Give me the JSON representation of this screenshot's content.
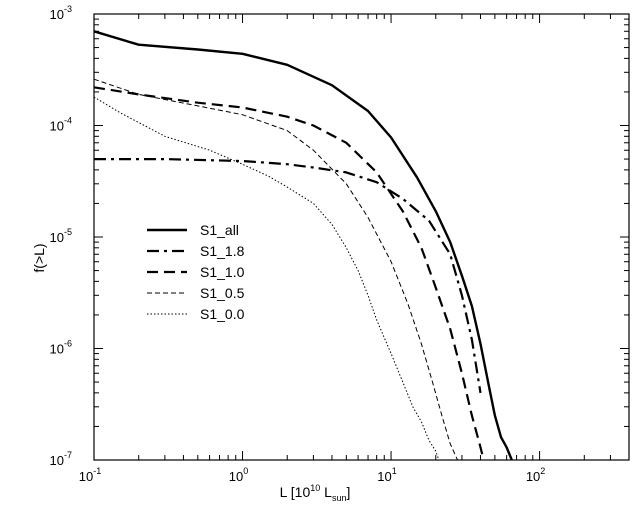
{
  "chart_data": {
    "type": "line",
    "xlabel_main": "L [10",
    "xlabel_exp": "10",
    "xlabel_unit": " L",
    "xlabel_sub": "sun",
    "xlabel_close": "]",
    "ylabel": "f(>L)",
    "x_scale": "log",
    "y_scale": "log",
    "xlim": [
      0.1,
      400
    ],
    "ylim": [
      1e-07,
      0.001
    ],
    "x_ticks": [
      {
        "value": 0.1,
        "base": "10",
        "exp": "-1"
      },
      {
        "value": 1,
        "base": "10",
        "exp": "0"
      },
      {
        "value": 10,
        "base": "10",
        "exp": "1"
      },
      {
        "value": 100,
        "base": "10",
        "exp": "2"
      }
    ],
    "y_ticks": [
      {
        "value": 1e-07,
        "base": "10",
        "exp": "-7"
      },
      {
        "value": 1e-06,
        "base": "10",
        "exp": "-6"
      },
      {
        "value": 1e-05,
        "base": "10",
        "exp": "-5"
      },
      {
        "value": 0.0001,
        "base": "10",
        "exp": "-4"
      },
      {
        "value": 0.001,
        "base": "10",
        "exp": "-3"
      }
    ],
    "grid": false,
    "legend_position": "center-left",
    "series": [
      {
        "name": "S1_all",
        "style": "solid-thick",
        "x": [
          0.1,
          0.2,
          0.5,
          1,
          2,
          4,
          7,
          10,
          15,
          20,
          25,
          30,
          35,
          40,
          45,
          50,
          55,
          60,
          65
        ],
        "y": [
          0.0007,
          0.00053,
          0.00048,
          0.00044,
          0.00035,
          0.00023,
          0.000135,
          7.8e-05,
          3.4e-05,
          1.7e-05,
          9e-06,
          4.5e-06,
          2.4e-06,
          1.1e-06,
          5e-07,
          2.5e-07,
          1.6e-07,
          1.3e-07,
          1e-07
        ]
      },
      {
        "name": "S1_1.8",
        "style": "dash-dot-thick",
        "x": [
          0.1,
          0.3,
          1,
          2,
          3,
          5,
          8,
          12,
          18,
          25,
          30,
          35,
          40
        ],
        "y": [
          5e-05,
          5e-05,
          4.8e-05,
          4.5e-05,
          4.2e-05,
          3.8e-05,
          3.1e-05,
          2.2e-05,
          1.4e-05,
          7e-06,
          3e-06,
          1.2e-06,
          4e-07
        ]
      },
      {
        "name": "S1_1.0",
        "style": "dashed-thick",
        "x": [
          0.1,
          0.2,
          0.5,
          1,
          2,
          3,
          5,
          8,
          12,
          16,
          20,
          25,
          30,
          35,
          40,
          42
        ],
        "y": [
          0.00022,
          0.00019,
          0.00016,
          0.000145,
          0.00012,
          0.0001,
          7e-05,
          3.8e-05,
          1.7e-05,
          8e-06,
          3.5e-06,
          1.5e-06,
          6e-07,
          2.5e-07,
          1.3e-07,
          1e-07
        ]
      },
      {
        "name": "S1_0.5",
        "style": "dashed-thin",
        "x": [
          0.1,
          0.2,
          0.5,
          1,
          2,
          3,
          5,
          7,
          10,
          13,
          16,
          19,
          22,
          25,
          28
        ],
        "y": [
          0.00026,
          0.00019,
          0.00015,
          0.000125,
          9e-05,
          6e-05,
          3e-05,
          1.5e-05,
          6e-06,
          2.5e-06,
          1.1e-06,
          5e-07,
          2.5e-07,
          1.4e-07,
          1e-07
        ]
      },
      {
        "name": "S1_0.0",
        "style": "dotted",
        "x": [
          0.1,
          0.15,
          0.3,
          0.6,
          1,
          1.5,
          2,
          3,
          4,
          5,
          6,
          7,
          8,
          10,
          12,
          14,
          16,
          18,
          20,
          21
        ],
        "y": [
          0.00018,
          0.00013,
          8e-05,
          6e-05,
          4.5e-05,
          3.5e-05,
          2.8e-05,
          2e-05,
          1.3e-05,
          8e-06,
          5e-06,
          3e-06,
          1.8e-06,
          9e-07,
          5e-07,
          3e-07,
          2.2e-07,
          1.5e-07,
          1.2e-07,
          1e-07
        ]
      }
    ]
  }
}
